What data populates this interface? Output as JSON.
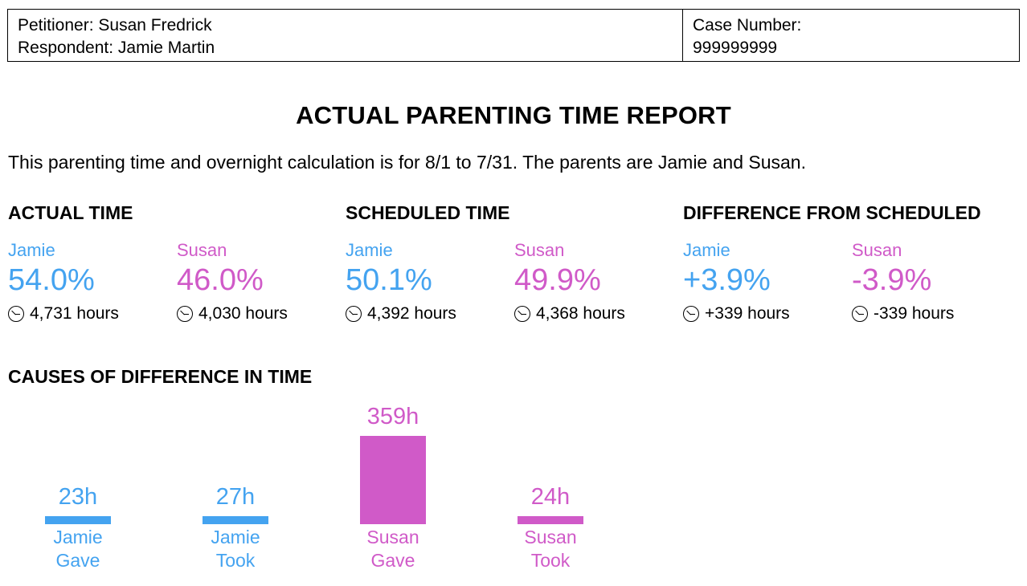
{
  "header": {
    "petitioner": "Petitioner: Susan Fredrick",
    "respondent": "Respondent: Jamie Martin",
    "case_label": "Case Number:",
    "case_number": "999999999"
  },
  "title": "ACTUAL PARENTING TIME REPORT",
  "intro": "This parenting time and overnight calculation is for 8/1 to 7/31. The parents are Jamie and Susan.",
  "colors": {
    "jamie": "#44a3f0",
    "susan": "#d05ac8"
  },
  "sections": [
    {
      "title": "ACTUAL TIME",
      "jamie": {
        "name": "Jamie",
        "pct": "54.0%",
        "hours": "4,731 hours"
      },
      "susan": {
        "name": "Susan",
        "pct": "46.0%",
        "hours": "4,030 hours"
      }
    },
    {
      "title": "SCHEDULED TIME",
      "jamie": {
        "name": "Jamie",
        "pct": "50.1%",
        "hours": "4,392 hours"
      },
      "susan": {
        "name": "Susan",
        "pct": "49.9%",
        "hours": "4,368 hours"
      }
    },
    {
      "title": "DIFFERENCE FROM SCHEDULED",
      "jamie": {
        "name": "Jamie",
        "pct": "+3.9%",
        "hours": "+339 hours"
      },
      "susan": {
        "name": "Susan",
        "pct": "-3.9%",
        "hours": "-339 hours"
      }
    }
  ],
  "causes_title": "CAUSES OF DIFFERENCE IN TIME",
  "chart_data": {
    "type": "bar",
    "categories": [
      "Jamie Gave",
      "Jamie Took",
      "Susan Gave",
      "Susan Took"
    ],
    "label_lines": [
      [
        "Jamie",
        "Gave"
      ],
      [
        "Jamie",
        "Took"
      ],
      [
        "Susan",
        "Gave"
      ],
      [
        "Susan",
        "Took"
      ]
    ],
    "values": [
      23,
      27,
      359,
      24
    ],
    "value_labels": [
      "23h",
      "27h",
      "359h",
      "24h"
    ],
    "colors": [
      "#44a3f0",
      "#44a3f0",
      "#d05ac8",
      "#d05ac8"
    ],
    "ylim": [
      0,
      359
    ]
  }
}
